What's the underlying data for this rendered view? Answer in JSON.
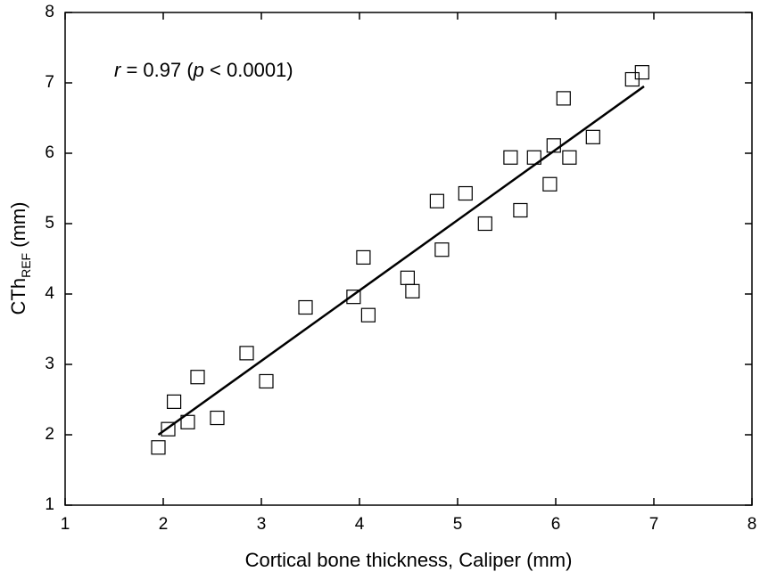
{
  "chart_data": {
    "type": "scatter",
    "xlabel": "Cortical bone thickness, Caliper (mm)",
    "ylabel_parts": [
      "CTh",
      "REF",
      " (mm)"
    ],
    "annotation_parts": [
      "r",
      " = 0.97 (",
      "p",
      " < 0.0001)"
    ],
    "xlim": [
      1,
      8
    ],
    "ylim": [
      1,
      8
    ],
    "xticks": [
      1,
      2,
      3,
      4,
      5,
      6,
      7,
      8
    ],
    "yticks": [
      1,
      2,
      3,
      4,
      5,
      6,
      7,
      8
    ],
    "color": "#000000",
    "x": [
      1.95,
      2.05,
      2.11,
      2.25,
      2.35,
      2.55,
      2.85,
      3.05,
      3.45,
      3.94,
      4.04,
      4.09,
      4.49,
      4.54,
      4.79,
      4.84,
      5.08,
      5.28,
      5.54,
      5.64,
      5.78,
      5.94,
      5.98,
      6.14,
      6.08,
      6.38,
      6.78,
      6.88
    ],
    "values": [
      1.82,
      2.08,
      2.47,
      2.18,
      2.82,
      2.24,
      3.16,
      2.76,
      3.81,
      3.96,
      4.52,
      3.7,
      4.23,
      4.04,
      5.32,
      4.63,
      5.43,
      5.0,
      5.94,
      5.19,
      5.94,
      5.56,
      6.11,
      5.94,
      6.78,
      6.23,
      7.05,
      7.15
    ],
    "fit_line": {
      "x": [
        1.95,
        6.9
      ],
      "y": [
        2.0,
        6.95
      ]
    }
  }
}
